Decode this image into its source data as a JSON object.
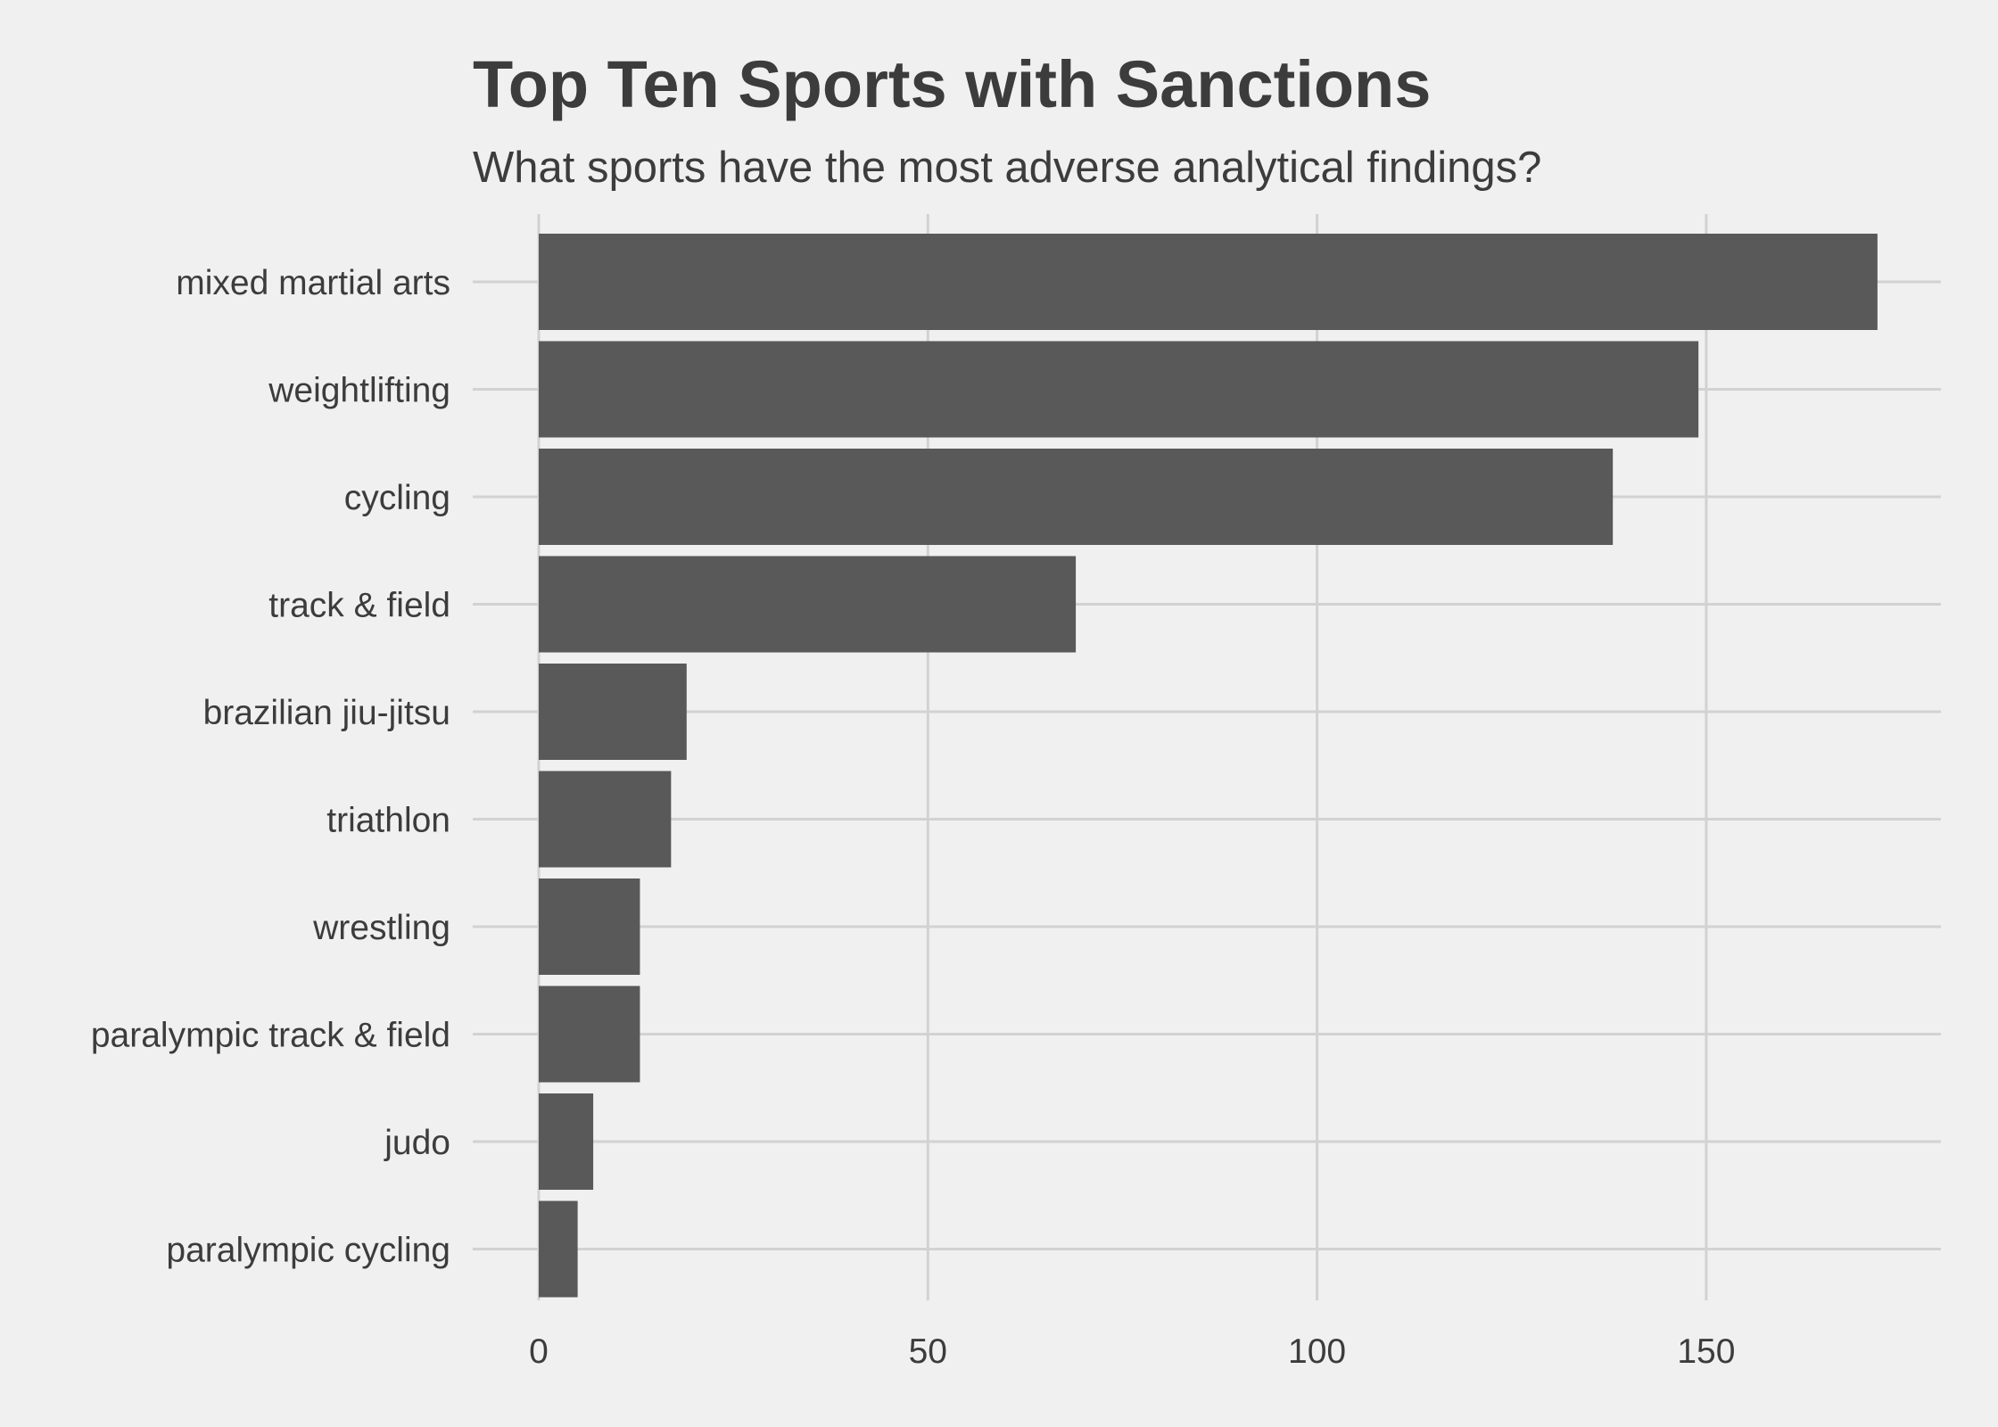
{
  "chart_data": {
    "type": "bar",
    "orientation": "horizontal",
    "title": "Top Ten Sports with Sanctions",
    "subtitle": "What sports have the most adverse analytical findings?",
    "xlabel": "",
    "ylabel": "",
    "categories": [
      "mixed martial arts",
      "weightlifting",
      "cycling",
      "track & field",
      "brazilian jiu-jitsu",
      "triathlon",
      "wrestling",
      "paralympic track & field",
      "judo",
      "paralympic cycling"
    ],
    "values": [
      172,
      149,
      138,
      69,
      19,
      17,
      13,
      13,
      7,
      5
    ],
    "xlim": [
      0,
      180
    ],
    "x_ticks": [
      0,
      50,
      100,
      150
    ],
    "x_tick_labels": [
      "0",
      "50",
      "100",
      "150"
    ],
    "grid": true,
    "legend": "none",
    "colors": {
      "bar": "#595959",
      "background": "#f0f0f0",
      "grid": "#d2d2d2",
      "text": "#3c3c3c"
    }
  }
}
